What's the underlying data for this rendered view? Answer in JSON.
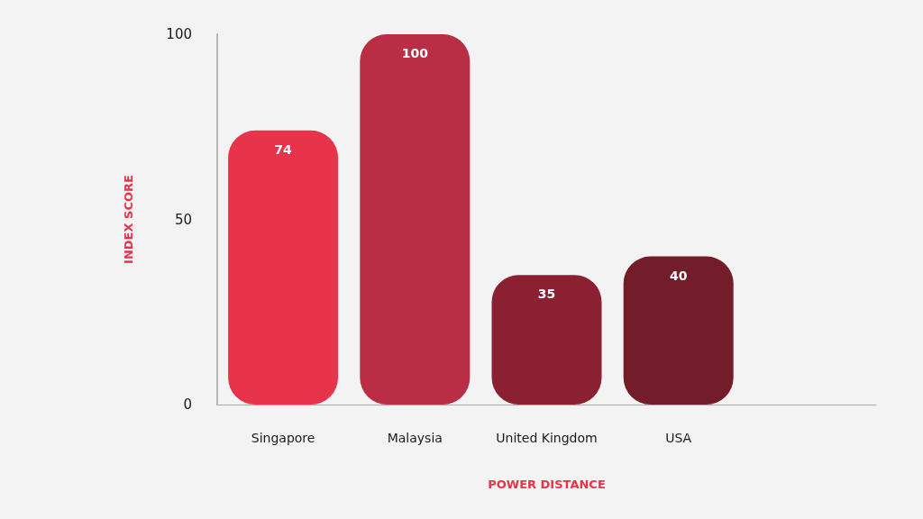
{
  "chart_data": {
    "type": "bar",
    "categories": [
      "Singapore",
      "Malaysia",
      "United Kingdom",
      "USA"
    ],
    "values": [
      74,
      100,
      35,
      40
    ],
    "colors": [
      "#e8344a",
      "#b92e45",
      "#8c2033",
      "#731c2a"
    ],
    "xlabel": "POWER DISTANCE",
    "ylabel": "INDEX SCORE",
    "ylim": [
      0,
      100
    ],
    "yticks": [
      0,
      50,
      100
    ],
    "data_labels": true
  }
}
